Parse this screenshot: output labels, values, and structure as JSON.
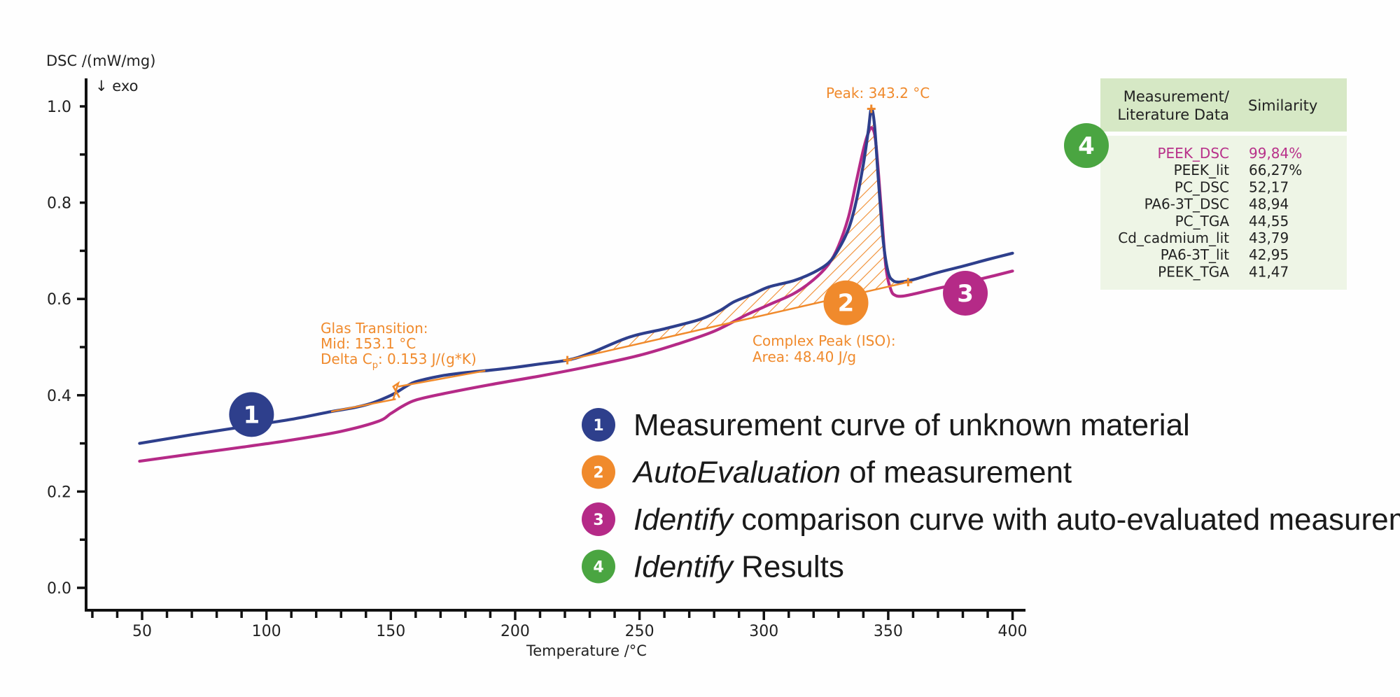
{
  "chart_data": {
    "type": "line",
    "title": "",
    "ylabel": "DSC /(mW/mg)",
    "ylabel_note": "↓ exo",
    "xlabel": "Temperature /°C",
    "xlim": [
      30,
      400
    ],
    "ylim": [
      -0.05,
      1.05
    ],
    "x_ticks": [
      50,
      100,
      150,
      200,
      250,
      300,
      350,
      400
    ],
    "x_minor_step": 10,
    "y_ticks": [
      0.0,
      0.2,
      0.4,
      0.6,
      0.8,
      1.0
    ],
    "y_tick_labels": [
      "0.0",
      "0.2",
      "0.4",
      "0.6",
      "0.8",
      "1.0"
    ],
    "y_minor_step": 0.1,
    "grid": false,
    "series": [
      {
        "name": "Measurement curve of unknown material",
        "color": "#2e3f8c",
        "x": [
          49,
          70,
          90,
          110,
          126,
          135,
          142,
          148,
          152,
          156,
          160,
          170,
          180,
          190,
          200,
          210,
          221,
          230,
          246,
          260,
          274,
          282,
          288,
          295,
          302,
          312,
          320,
          326,
          330,
          334,
          337,
          340,
          342,
          343.2,
          344.5,
          346,
          348,
          350,
          352,
          354,
          356,
          360,
          370,
          380,
          390,
          400
        ],
        "y": [
          0.3,
          0.318,
          0.334,
          0.35,
          0.366,
          0.374,
          0.383,
          0.395,
          0.405,
          0.418,
          0.428,
          0.44,
          0.447,
          0.452,
          0.458,
          0.465,
          0.473,
          0.487,
          0.521,
          0.538,
          0.557,
          0.575,
          0.594,
          0.609,
          0.625,
          0.638,
          0.655,
          0.675,
          0.703,
          0.745,
          0.8,
          0.88,
          0.95,
          0.995,
          0.96,
          0.85,
          0.72,
          0.655,
          0.638,
          0.635,
          0.636,
          0.64,
          0.655,
          0.668,
          0.682,
          0.695
        ]
      },
      {
        "name": "Identify comparison curve",
        "color": "#b52a87",
        "x": [
          49,
          70,
          90,
          110,
          130,
          145,
          150,
          155,
          160,
          170,
          190,
          210,
          230,
          250,
          265,
          280,
          293,
          302,
          312,
          320,
          326,
          330,
          334,
          337,
          340,
          342,
          343.5,
          345,
          347,
          349,
          351,
          353,
          356,
          360,
          370,
          380,
          390,
          400
        ],
        "y": [
          0.263,
          0.278,
          0.292,
          0.307,
          0.325,
          0.346,
          0.362,
          0.378,
          0.39,
          0.402,
          0.422,
          0.44,
          0.46,
          0.483,
          0.506,
          0.533,
          0.567,
          0.588,
          0.611,
          0.64,
          0.672,
          0.71,
          0.77,
          0.84,
          0.91,
          0.945,
          0.955,
          0.925,
          0.8,
          0.67,
          0.62,
          0.607,
          0.606,
          0.61,
          0.622,
          0.633,
          0.645,
          0.658
        ]
      }
    ],
    "glass_transition": {
      "label_lines": [
        "Glas Transition:",
        "Mid: 153.1 °C",
        "Delta C",
        "p",
        ": 0.153 J/(g*K)"
      ],
      "onset_line": {
        "x": [
          126,
          152
        ],
        "y": [
          0.366,
          0.392
        ]
      },
      "end_line": {
        "x": [
          153,
          188
        ],
        "y": [
          0.418,
          0.451
        ]
      },
      "mid": {
        "x": 153.1,
        "y": 0.41
      },
      "color": "#f08a2c"
    },
    "complex_peak": {
      "label_lines": [
        "Complex Peak (ISO):",
        "Area: 48.40 J/g"
      ],
      "baseline": {
        "x": [
          221,
          358
        ],
        "y": [
          0.473,
          0.635
        ]
      },
      "start_marker": {
        "x": 221,
        "y": 0.473
      },
      "end_marker": {
        "x": 358,
        "y": 0.635
      },
      "area": 48.4,
      "color": "#f08a2c"
    },
    "peak": {
      "label": "Peak: 343.2 °C",
      "x": 343.2,
      "y": 0.995
    },
    "badges": [
      {
        "num": "1",
        "color": "#2e3f8c",
        "x": 94,
        "y": 0.36
      },
      {
        "num": "2",
        "color": "#f08a2c",
        "x": 333,
        "y": 0.592
      },
      {
        "num": "3",
        "color": "#b52a87",
        "x": 381,
        "y": 0.612
      }
    ]
  },
  "legend": [
    {
      "num": "1",
      "color": "#2e3f8c",
      "italic": "",
      "text": "Measurement curve of unknown material"
    },
    {
      "num": "2",
      "color": "#f08a2c",
      "italic": "AutoEvaluation",
      "text": " of measurement"
    },
    {
      "num": "3",
      "color": "#b52a87",
      "italic": "Identify",
      "text": " comparison curve with auto-evaluated measurement"
    },
    {
      "num": "4",
      "color": "#4aa541",
      "italic": "Identify",
      "text": " Results"
    }
  ],
  "results_table": {
    "badge": {
      "num": "4",
      "color": "#4aa541"
    },
    "header": {
      "col1_line1": "Measurement/",
      "col1_line2": "Literature Data",
      "col2": "Similarity"
    },
    "header_bg": "#d6e8c5",
    "body_bg": "#eef5e6",
    "highlight_color": "#b8318a",
    "rows": [
      {
        "name": "PEEK_DSC",
        "similarity": "99,84%",
        "highlight": true
      },
      {
        "name": "PEEK_lit",
        "similarity": "66,27%",
        "highlight": false
      },
      {
        "name": "PC_DSC",
        "similarity": "52,17",
        "highlight": false
      },
      {
        "name": "PA6-3T_DSC",
        "similarity": "48,94",
        "highlight": false
      },
      {
        "name": "PC_TGA",
        "similarity": "44,55",
        "highlight": false
      },
      {
        "name": "Cd_cadmium_lit",
        "similarity": "43,79",
        "highlight": false
      },
      {
        "name": "PA6-3T_lit",
        "similarity": "42,95",
        "highlight": false
      },
      {
        "name": "PEEK_TGA",
        "similarity": "41,47",
        "highlight": false
      }
    ]
  }
}
